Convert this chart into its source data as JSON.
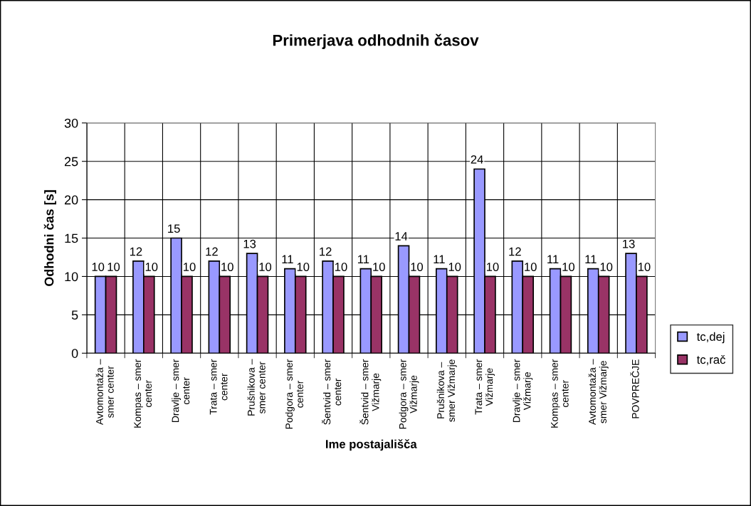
{
  "chart_data": {
    "type": "bar",
    "title": "Primerjava odhodnih časov",
    "xlabel": "Ime postajališča",
    "ylabel": "Odhodni čas [s]",
    "categories": [
      "Avtomontaža –\nsmer center",
      "Kompas – smer\ncenter",
      "Dravlje – smer\ncenter",
      "Trata – smer\ncenter",
      "Prušnikova –\nsmer center",
      "Podgora – smer\ncenter",
      "Šentvid – smer\ncenter",
      "Šentvid – smer\nVižmarje",
      "Podgora – smer\nVižmarje",
      "Prušnikova –\nsmer Vižmarje",
      "Trata – smer\nVižmarje",
      "Dravlje – smer\nVižmarje",
      "Kompas – smer\ncenter",
      "Avtomontaža –\nsmer Vižmarje",
      "POVPREČJE"
    ],
    "series": [
      {
        "name": "tc,dej",
        "color": "#9999ff",
        "values": [
          10,
          12,
          15,
          12,
          13,
          11,
          12,
          11,
          14,
          11,
          24,
          12,
          11,
          11,
          13
        ]
      },
      {
        "name": "tc,rač",
        "color": "#993366",
        "values": [
          10,
          10,
          10,
          10,
          10,
          10,
          10,
          10,
          10,
          10,
          10,
          10,
          10,
          10,
          10
        ]
      }
    ],
    "ylim": [
      0,
      30
    ],
    "yticks": [
      0,
      5,
      10,
      15,
      20,
      25,
      30
    ],
    "grid": true,
    "legend": "right",
    "data_labels": true
  }
}
